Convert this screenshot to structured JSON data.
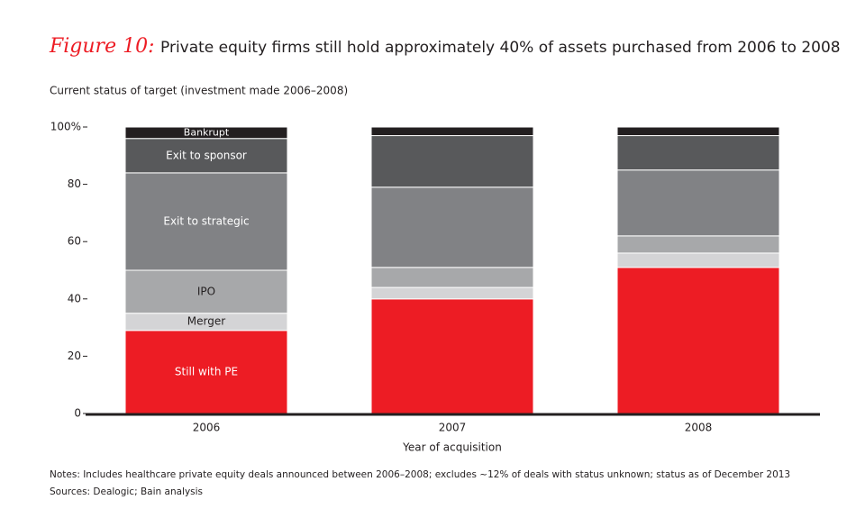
{
  "chart_data": {
    "type": "stacked-bar",
    "figure_label": "Figure 10:",
    "title": "Private equity firms still hold approximately 40% of assets purchased from 2006 to 2008",
    "subtitle": "Current status of target (investment made 2006–2008)",
    "x_label": "Year of acquisition",
    "categories": [
      "2006",
      "2007",
      "2008"
    ],
    "series": [
      {
        "name": "Still with PE",
        "color": "#ed1c24",
        "values": [
          29,
          40,
          51
        ]
      },
      {
        "name": "Merger",
        "color": "#d4d4d6",
        "values": [
          6,
          4,
          5
        ]
      },
      {
        "name": "IPO",
        "color": "#a7a8aa",
        "values": [
          15,
          7,
          6
        ]
      },
      {
        "name": "Exit to strategic",
        "color": "#818285",
        "values": [
          34,
          28,
          23
        ]
      },
      {
        "name": "Exit to sponsor",
        "color": "#58595b",
        "values": [
          12,
          18,
          12
        ]
      },
      {
        "name": "Bankrupt",
        "color": "#231f20",
        "values": [
          4,
          3,
          3
        ]
      }
    ],
    "ylim": [
      0,
      100
    ],
    "yticks": [
      0,
      20,
      40,
      60,
      80,
      {
        "value": 100,
        "label": "100%"
      }
    ],
    "notes": "Notes: Includes healthcare private equity deals announced between 2006–2008; excludes ~12% of deals with status unknown; status as of December 2013",
    "sources": "Sources: Dealogic; Bain analysis"
  }
}
